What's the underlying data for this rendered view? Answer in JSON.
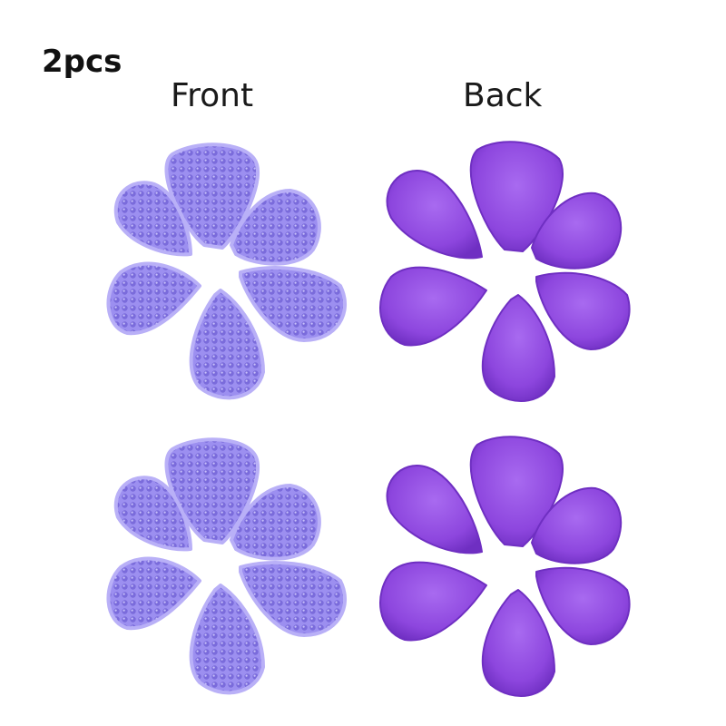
{
  "header": {
    "count_label": "2pcs"
  },
  "columns": {
    "front_label": "Front",
    "back_label": "Back"
  },
  "colors": {
    "gel_fill": "#9c8ff0",
    "gel_bead": "#7466d6",
    "gel_edge": "#b9b0f7",
    "velvet_fill": "#8d46de",
    "velvet_shade": "#6f2fc2",
    "velvet_light": "#a86af0"
  },
  "products": [
    {
      "side": "front",
      "material": "gel-beads"
    },
    {
      "side": "back",
      "material": "velvet"
    },
    {
      "side": "front",
      "material": "gel-beads"
    },
    {
      "side": "back",
      "material": "velvet"
    }
  ]
}
